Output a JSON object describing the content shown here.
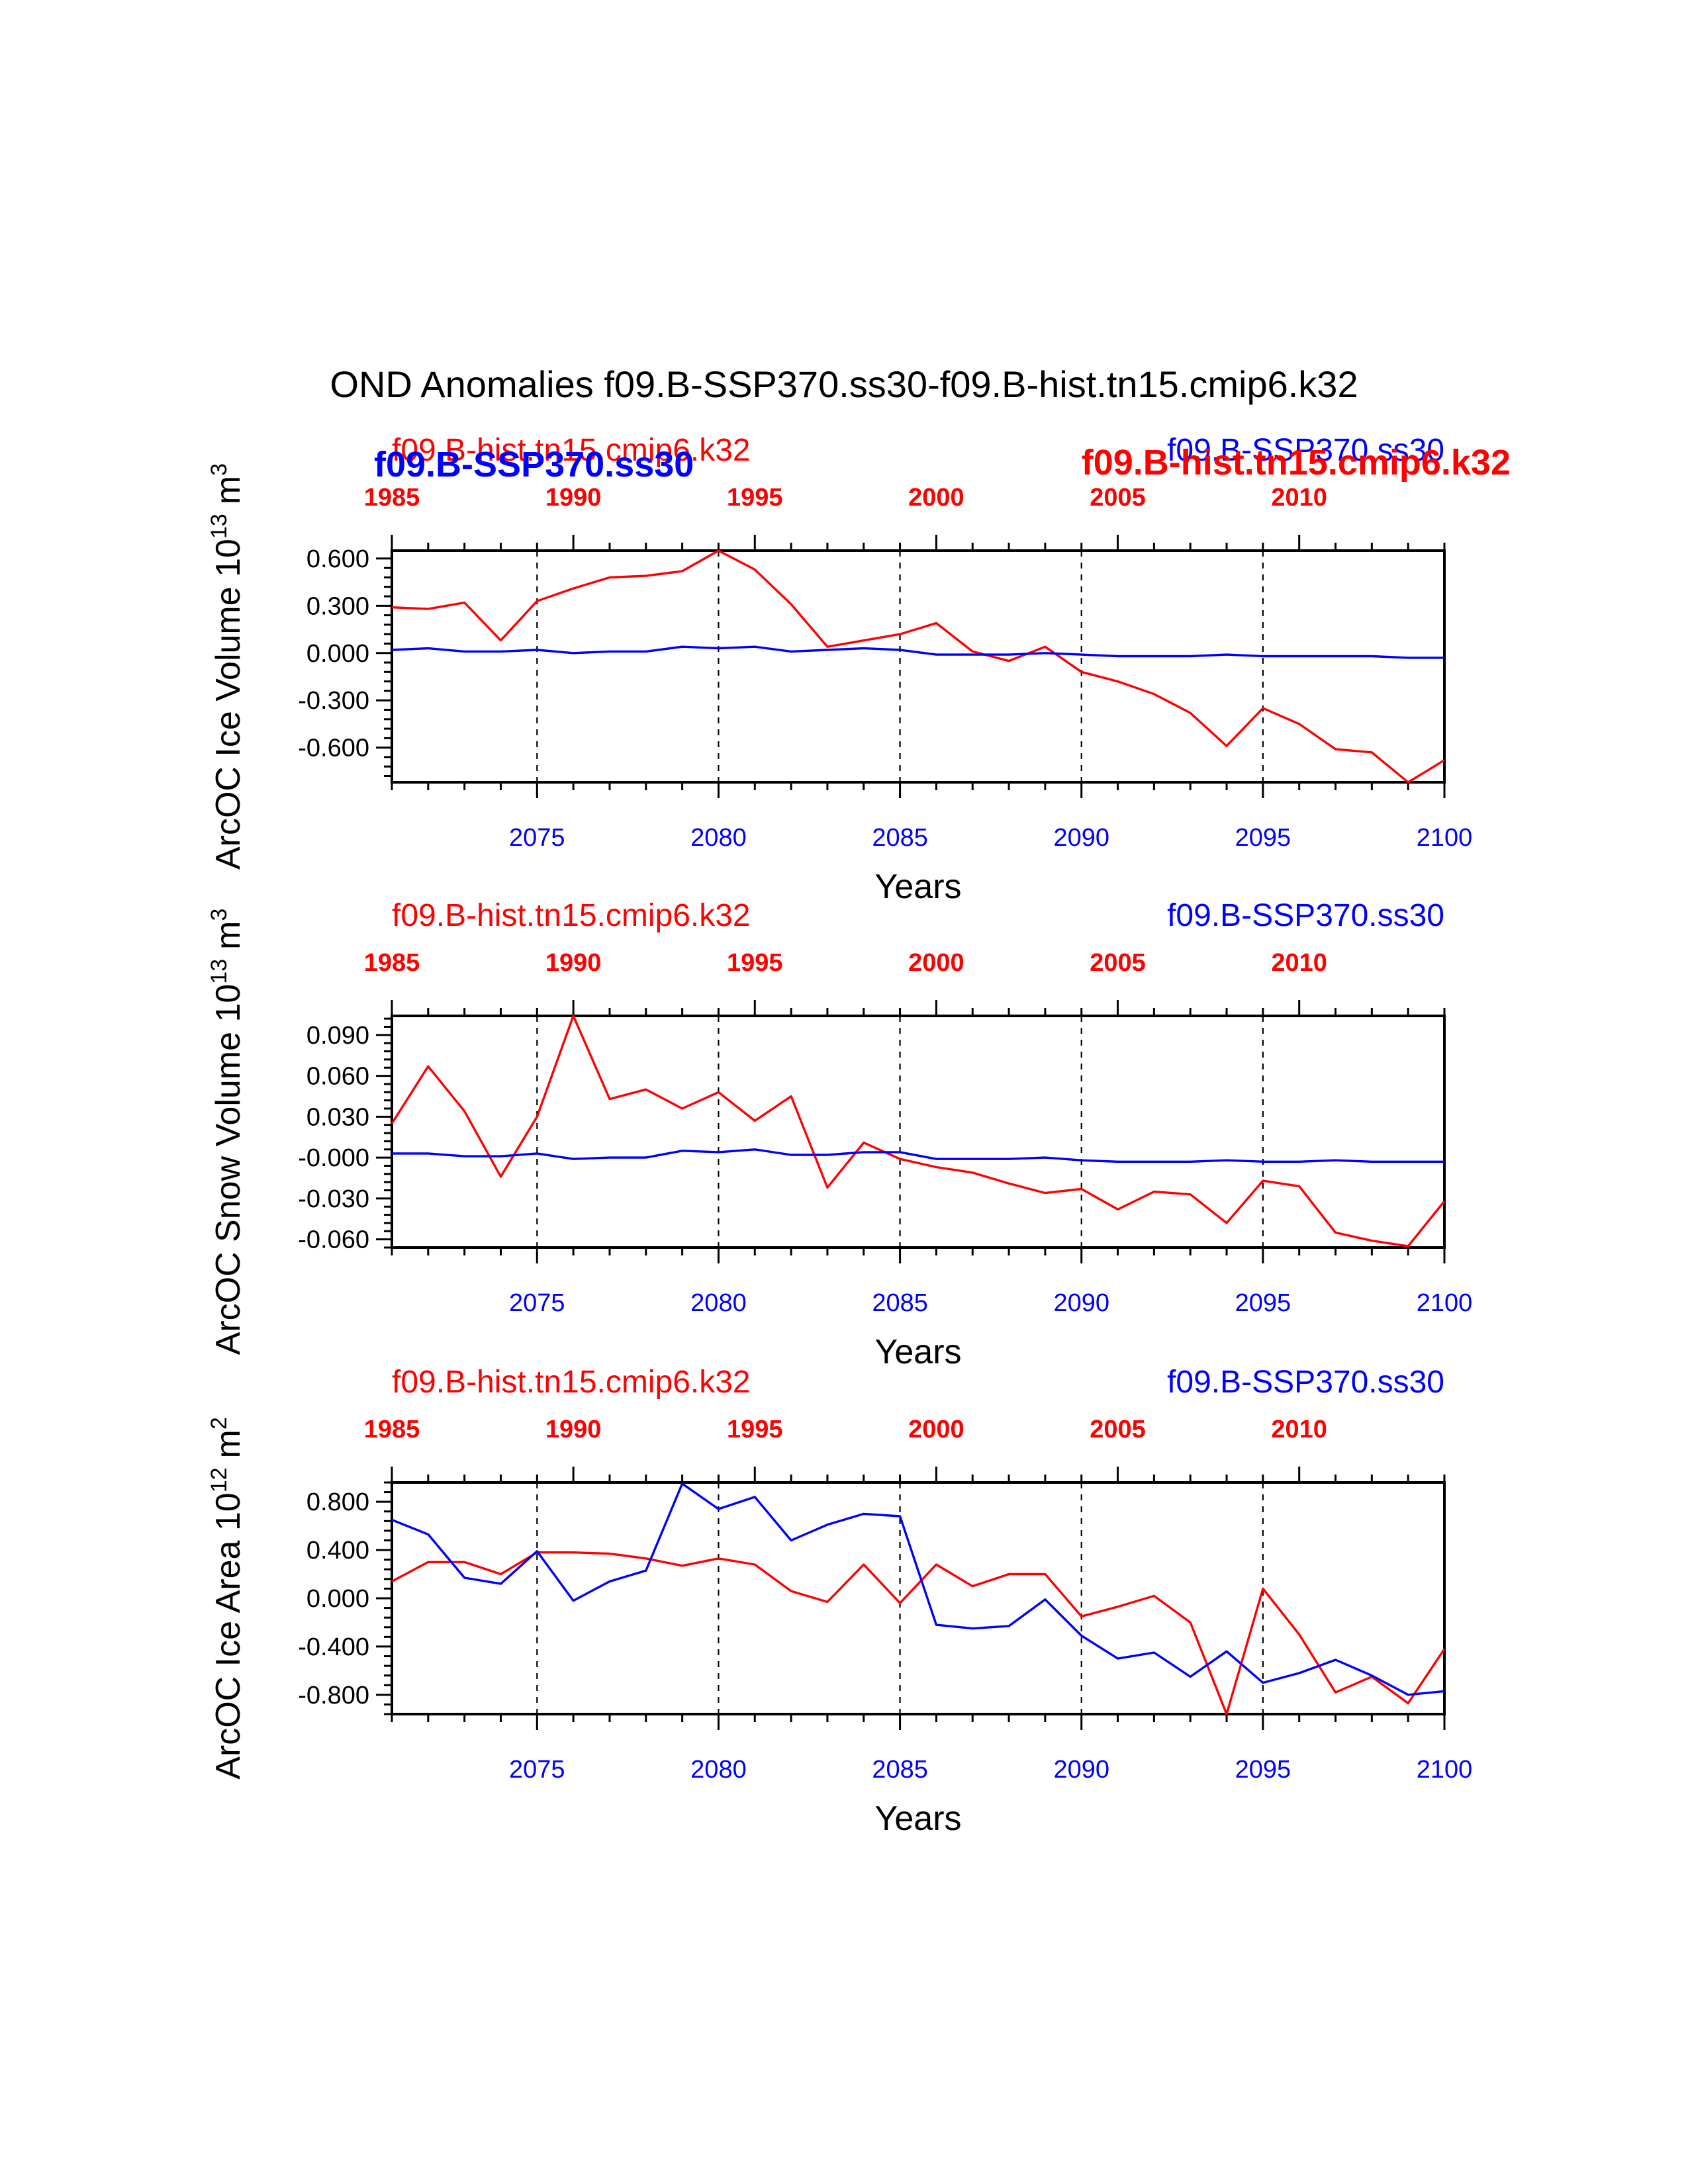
{
  "title": "OND Anomalies f09.B-SSP370.ss30-f09.B-hist.tn15.cmip6.k32",
  "colors": {
    "hist": "#ff0000",
    "ssp": "#0000ff",
    "axis": "#000000"
  },
  "overlap_labels": {
    "left_blue": "f09.B-SSP370.ss30",
    "right_red": "f09.B-hist.tn15.cmip6.k32"
  },
  "chart_data": [
    {
      "type": "line",
      "ylabel": "ArcOC Ice Volume 10",
      "ylabel_exp": "13",
      "ylabel_unit": "m",
      "ylabel_unit_exp": "3",
      "xlabel": "Years",
      "label_hist": "f09.B-hist.tn15.cmip6.k32",
      "label_ssp": "f09.B-SSP370.ss30",
      "ylim": [
        -0.82,
        0.65
      ],
      "yticks": [
        0.6,
        0.3,
        0.0,
        -0.3,
        -0.6
      ],
      "ytick_labels": [
        "0.600",
        "0.300",
        "0.000",
        "-0.300",
        "-0.600"
      ],
      "bottom_axis": {
        "range": [
          2071,
          2100
        ],
        "ticks": [
          2075,
          2080,
          2085,
          2090,
          2095,
          2100
        ]
      },
      "top_axis": {
        "range": [
          1985,
          2014
        ],
        "ticks": [
          1985,
          1990,
          1995,
          2000,
          2005,
          2010
        ]
      },
      "grid_x": [
        2075,
        2080,
        2085,
        2090,
        2095
      ],
      "series": [
        {
          "name": "f09.B-hist.tn15.cmip6.k32",
          "x": [
            1985,
            1986,
            1987,
            1988,
            1989,
            1990,
            1991,
            1992,
            1993,
            1994,
            1995,
            1996,
            1997,
            1998,
            1999,
            2000,
            2001,
            2002,
            2003,
            2004,
            2005,
            2006,
            2007,
            2008,
            2009,
            2010,
            2011,
            2012,
            2013,
            2014
          ],
          "values": [
            0.29,
            0.28,
            0.32,
            0.08,
            0.33,
            0.41,
            0.48,
            0.49,
            0.52,
            0.65,
            0.53,
            0.31,
            0.04,
            0.08,
            0.12,
            0.19,
            0.01,
            -0.05,
            0.04,
            -0.12,
            -0.18,
            -0.26,
            -0.38,
            -0.59,
            -0.35,
            -0.45,
            -0.61,
            -0.63,
            -0.82,
            -0.68
          ]
        },
        {
          "name": "f09.B-SSP370.ss30",
          "x": [
            2071,
            2072,
            2073,
            2074,
            2075,
            2076,
            2077,
            2078,
            2079,
            2080,
            2081,
            2082,
            2083,
            2084,
            2085,
            2086,
            2087,
            2088,
            2089,
            2090,
            2091,
            2092,
            2093,
            2094,
            2095,
            2096,
            2097,
            2098,
            2099,
            2100
          ],
          "values": [
            0.02,
            0.03,
            0.01,
            0.01,
            0.02,
            0.0,
            0.01,
            0.01,
            0.04,
            0.03,
            0.04,
            0.01,
            0.02,
            0.03,
            0.02,
            -0.01,
            -0.01,
            -0.01,
            0.0,
            -0.01,
            -0.02,
            -0.02,
            -0.02,
            -0.01,
            -0.02,
            -0.02,
            -0.02,
            -0.02,
            -0.03,
            -0.03
          ]
        }
      ]
    },
    {
      "type": "line",
      "ylabel": "ArcOC Snow Volume 10",
      "ylabel_exp": "13",
      "ylabel_unit": "m",
      "ylabel_unit_exp": "3",
      "xlabel": "Years",
      "label_hist": "f09.B-hist.tn15.cmip6.k32",
      "label_ssp": "f09.B-SSP370.ss30",
      "ylim": [
        -0.066,
        0.104
      ],
      "yticks": [
        0.09,
        0.06,
        0.03,
        0.0,
        -0.03,
        -0.06
      ],
      "ytick_labels": [
        "0.090",
        "0.060",
        "0.030",
        "-0.000",
        "-0.030",
        "-0.060"
      ],
      "bottom_axis": {
        "range": [
          2071,
          2100
        ],
        "ticks": [
          2075,
          2080,
          2085,
          2090,
          2095,
          2100
        ]
      },
      "top_axis": {
        "range": [
          1985,
          2014
        ],
        "ticks": [
          1985,
          1990,
          1995,
          2000,
          2005,
          2010
        ]
      },
      "grid_x": [
        2075,
        2080,
        2085,
        2090,
        2095
      ],
      "series": [
        {
          "name": "f09.B-hist.tn15.cmip6.k32",
          "x": [
            1985,
            1986,
            1987,
            1988,
            1989,
            1990,
            1991,
            1992,
            1993,
            1994,
            1995,
            1996,
            1997,
            1998,
            1999,
            2000,
            2001,
            2002,
            2003,
            2004,
            2005,
            2006,
            2007,
            2008,
            2009,
            2010,
            2011,
            2012,
            2013,
            2014
          ],
          "values": [
            0.025,
            0.067,
            0.034,
            -0.014,
            0.03,
            0.104,
            0.043,
            0.05,
            0.036,
            0.048,
            0.027,
            0.045,
            -0.022,
            0.011,
            -0.001,
            -0.007,
            -0.011,
            -0.019,
            -0.026,
            -0.023,
            -0.038,
            -0.025,
            -0.027,
            -0.048,
            -0.017,
            -0.021,
            -0.055,
            -0.061,
            -0.065,
            -0.032
          ]
        },
        {
          "name": "f09.B-SSP370.ss30",
          "x": [
            2071,
            2072,
            2073,
            2074,
            2075,
            2076,
            2077,
            2078,
            2079,
            2080,
            2081,
            2082,
            2083,
            2084,
            2085,
            2086,
            2087,
            2088,
            2089,
            2090,
            2091,
            2092,
            2093,
            2094,
            2095,
            2096,
            2097,
            2098,
            2099,
            2100
          ],
          "values": [
            0.003,
            0.003,
            0.001,
            0.001,
            0.003,
            -0.001,
            0.0,
            0.0,
            0.005,
            0.004,
            0.006,
            0.002,
            0.002,
            0.004,
            0.004,
            -0.001,
            -0.001,
            -0.001,
            0.0,
            -0.002,
            -0.003,
            -0.003,
            -0.003,
            -0.002,
            -0.003,
            -0.003,
            -0.002,
            -0.003,
            -0.003,
            -0.003
          ]
        }
      ]
    },
    {
      "type": "line",
      "ylabel": "ArcOC Ice Area 10",
      "ylabel_exp": "12",
      "ylabel_unit": "m",
      "ylabel_unit_exp": "2",
      "xlabel": "Years",
      "label_hist": "f09.B-hist.tn15.cmip6.k32",
      "label_ssp": "f09.B-SSP370.ss30",
      "ylim": [
        -0.96,
        0.96
      ],
      "yticks": [
        0.8,
        0.4,
        0.0,
        -0.4,
        -0.8
      ],
      "ytick_labels": [
        "0.800",
        "0.400",
        "0.000",
        "-0.400",
        "-0.800"
      ],
      "bottom_axis": {
        "range": [
          2071,
          2100
        ],
        "ticks": [
          2075,
          2080,
          2085,
          2090,
          2095,
          2100
        ]
      },
      "top_axis": {
        "range": [
          1985,
          2014
        ],
        "ticks": [
          1985,
          1990,
          1995,
          2000,
          2005,
          2010
        ]
      },
      "grid_x": [
        2075,
        2080,
        2085,
        2090,
        2095
      ],
      "series": [
        {
          "name": "f09.B-hist.tn15.cmip6.k32",
          "x": [
            1985,
            1986,
            1987,
            1988,
            1989,
            1990,
            1991,
            1992,
            1993,
            1994,
            1995,
            1996,
            1997,
            1998,
            1999,
            2000,
            2001,
            2002,
            2003,
            2004,
            2005,
            2006,
            2007,
            2008,
            2009,
            2010,
            2011,
            2012,
            2013,
            2014
          ],
          "values": [
            0.14,
            0.3,
            0.3,
            0.2,
            0.38,
            0.38,
            0.37,
            0.33,
            0.27,
            0.33,
            0.28,
            0.06,
            -0.03,
            0.28,
            -0.04,
            0.28,
            0.1,
            0.2,
            0.2,
            -0.15,
            -0.07,
            0.02,
            -0.2,
            -0.96,
            0.08,
            -0.3,
            -0.78,
            -0.65,
            -0.87,
            -0.42
          ]
        },
        {
          "name": "f09.B-SSP370.ss30",
          "x": [
            2071,
            2072,
            2073,
            2074,
            2075,
            2076,
            2077,
            2078,
            2079,
            2080,
            2081,
            2082,
            2083,
            2084,
            2085,
            2086,
            2087,
            2088,
            2089,
            2090,
            2091,
            2092,
            2093,
            2094,
            2095,
            2096,
            2097,
            2098,
            2099,
            2100
          ],
          "values": [
            0.65,
            0.53,
            0.17,
            0.12,
            0.39,
            -0.02,
            0.14,
            0.23,
            0.95,
            0.74,
            0.84,
            0.48,
            0.61,
            0.7,
            0.68,
            -0.22,
            -0.25,
            -0.23,
            -0.01,
            -0.31,
            -0.5,
            -0.45,
            -0.65,
            -0.44,
            -0.7,
            -0.62,
            -0.51,
            -0.64,
            -0.8,
            -0.77
          ]
        }
      ]
    }
  ]
}
